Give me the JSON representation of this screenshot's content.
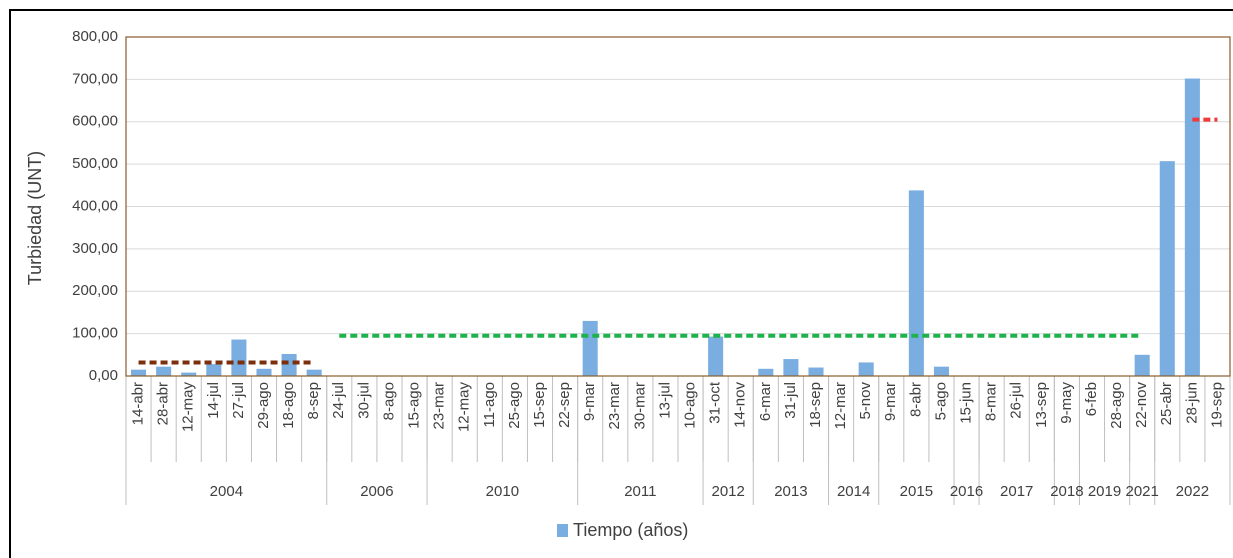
{
  "chart_data": {
    "type": "bar",
    "ylabel": "Turbiedad (UNT)",
    "categories": [
      "14-abr",
      "28-abr",
      "12-may",
      "14-jul",
      "27-jul",
      "29-ago",
      "18-ago",
      "8-sep",
      "24-jul",
      "30-jul",
      "8-ago",
      "15-ago",
      "23-mar",
      "12-may",
      "11-ago",
      "25-ago",
      "15-sep",
      "22-sep",
      "9-mar",
      "23-mar",
      "30-mar",
      "13-jul",
      "10-ago",
      "31-oct",
      "14-nov",
      "6-mar",
      "31-jul",
      "18-sep",
      "12-mar",
      "5-nov",
      "9-mar",
      "8-abr",
      "5-ago",
      "15-jun",
      "8-mar",
      "26-jul",
      "13-sep",
      "9-may",
      "6-feb",
      "28-ago",
      "22-nov",
      "25-abr",
      "28-jun",
      "19-sep"
    ],
    "groups": [
      {
        "label": "2004",
        "count": 8
      },
      {
        "label": "2006",
        "count": 4
      },
      {
        "label": "2010",
        "count": 6
      },
      {
        "label": "2011",
        "count": 5
      },
      {
        "label": "2012",
        "count": 2
      },
      {
        "label": "2013",
        "count": 3
      },
      {
        "label": "2014",
        "count": 2
      },
      {
        "label": "2015",
        "count": 3
      },
      {
        "label": "2016",
        "count": 1
      },
      {
        "label": "2017",
        "count": 3
      },
      {
        "label": "2018",
        "count": 1
      },
      {
        "label": "2019",
        "count": 2
      },
      {
        "label": "2021",
        "count": 1
      },
      {
        "label": "2022",
        "count": 3
      }
    ],
    "series": [
      {
        "name": "Tiempo (años)",
        "color": "#7aaee0",
        "values": [
          15,
          22,
          8,
          28,
          86,
          17,
          52,
          15,
          0,
          0,
          0,
          0,
          0,
          0,
          0,
          0,
          0,
          0,
          130,
          0,
          0,
          0,
          0,
          93,
          0,
          17,
          40,
          20,
          0,
          32,
          0,
          438,
          22,
          0,
          0,
          0,
          0,
          0,
          0,
          0,
          50,
          507,
          702,
          0
        ]
      }
    ],
    "reference_lines": [
      {
        "value": 32,
        "color": "#7b2f0c",
        "start": 0,
        "end": 7
      },
      {
        "value": 95,
        "color": "#1db24b",
        "start": 8,
        "end": 40
      },
      {
        "value": 605,
        "color": "#ee3b3b",
        "start": 42,
        "end": 43
      }
    ],
    "ylim": [
      0,
      800
    ],
    "yticks": [
      {
        "value": 0,
        "label": "0,00"
      },
      {
        "value": 100,
        "label": "100,00"
      },
      {
        "value": 200,
        "label": "200,00"
      },
      {
        "value": 300,
        "label": "300,00"
      },
      {
        "value": 400,
        "label": "400,00"
      },
      {
        "value": 500,
        "label": "500,00"
      },
      {
        "value": 600,
        "label": "600,00"
      },
      {
        "value": 700,
        "label": "700,00"
      },
      {
        "value": 800,
        "label": "800,00"
      }
    ],
    "grid": true,
    "legend": "bottom"
  }
}
